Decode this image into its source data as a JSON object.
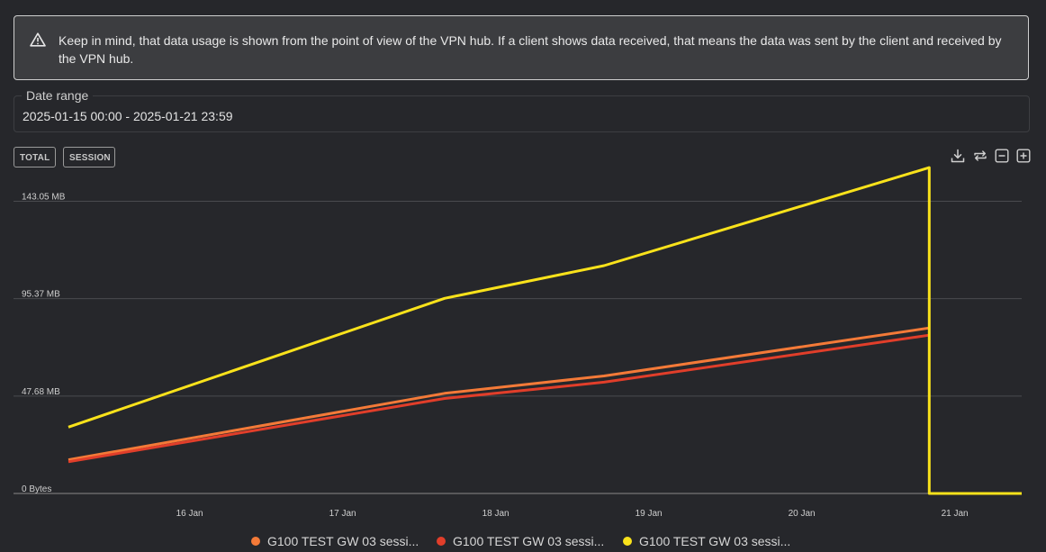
{
  "alert": {
    "icon": "warning-icon",
    "text": "Keep in mind, that data usage is shown from the point of view of the VPN hub. If a client shows data received, that means the data was sent by the client and received by the VPN hub."
  },
  "date_range": {
    "label": "Date range",
    "value": "2025-01-15 00:00 - 2025-01-21 23:59"
  },
  "view_buttons": {
    "total": "TOTAL",
    "session": "SESSION"
  },
  "toolbar": {
    "icons": [
      "download-icon",
      "reset-icon",
      "zoom-out-icon",
      "zoom-in-icon"
    ]
  },
  "chart_data": {
    "type": "line",
    "x_ticks": [
      "16 Jan",
      "17 Jan",
      "18 Jan",
      "19 Jan",
      "20 Jan",
      "21 Jan"
    ],
    "y_ticks": [
      "0 Bytes",
      "47.68 MB",
      "95.37 MB",
      "143.05 MB"
    ],
    "ylim_mb": [
      0,
      160
    ],
    "xlim": [
      "2025-01-15T05:00",
      "2025-01-21T10:30"
    ],
    "grid": true,
    "legend_position": "bottom",
    "series": [
      {
        "name": "G100 TEST GW 03 sessi...",
        "color": "#f47a38",
        "points": [
          [
            "2025-01-15T05:00",
            16.5
          ],
          [
            "2025-01-17T16:00",
            49.0
          ],
          [
            "2025-01-18T17:00",
            57.5
          ],
          [
            "2025-01-20T20:00",
            81.0
          ]
        ]
      },
      {
        "name": "G100 TEST GW 03 sessi...",
        "color": "#e13e2a",
        "points": [
          [
            "2025-01-15T05:00",
            15.5
          ],
          [
            "2025-01-17T16:00",
            46.5
          ],
          [
            "2025-01-18T17:00",
            54.5
          ],
          [
            "2025-01-20T20:00",
            77.5
          ]
        ]
      },
      {
        "name": "G100 TEST GW 03 sessi...",
        "color": "#f9e21b",
        "points": [
          [
            "2025-01-15T05:00",
            32.5
          ],
          [
            "2025-01-17T16:00",
            95.5
          ],
          [
            "2025-01-18T17:00",
            111.5
          ],
          [
            "2025-01-20T20:00",
            159.5
          ],
          [
            "2025-01-20T20:00",
            0
          ],
          [
            "2025-01-21T10:30",
            0
          ]
        ]
      }
    ]
  }
}
